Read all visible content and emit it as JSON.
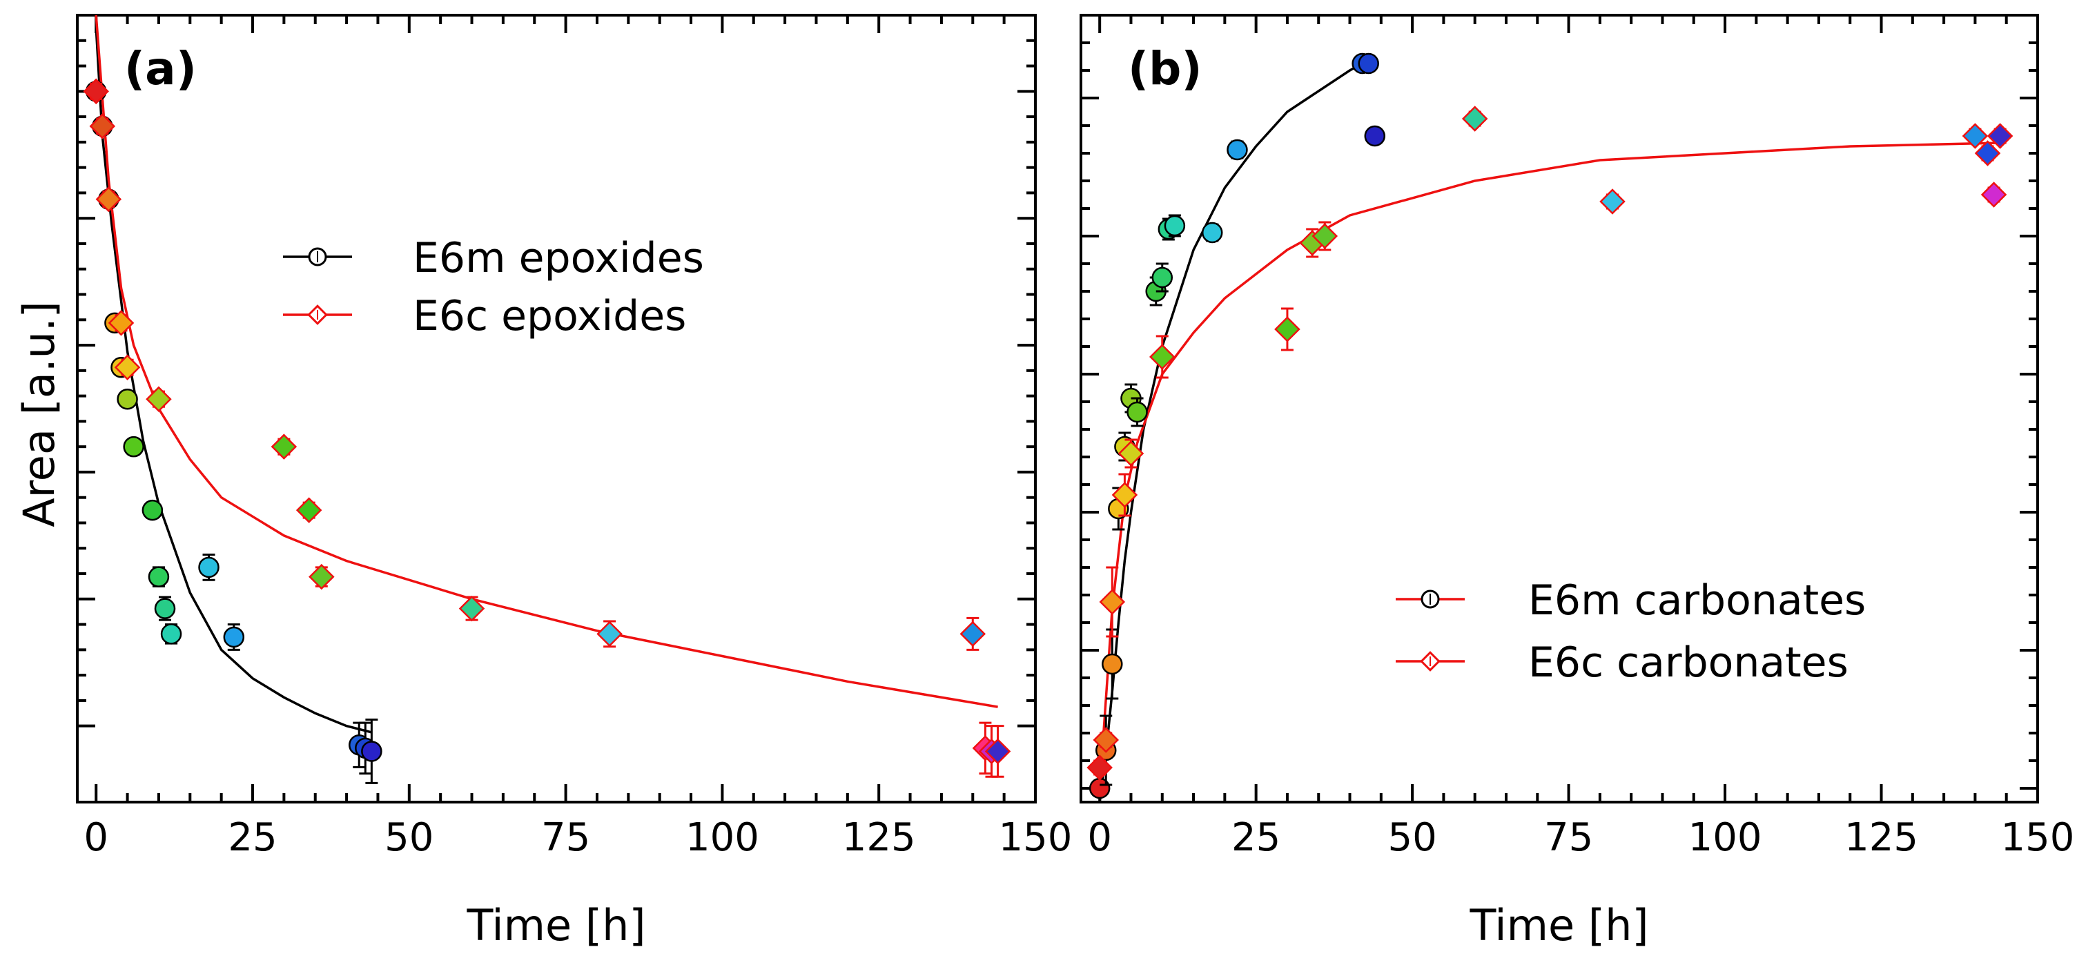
{
  "colors": {
    "epoxide_fit": "#000000",
    "carbonate_fit": "#ee1111",
    "epoxide_fit_b": "#000000",
    "carbonate_fit_b": "#ee1111",
    "error_epoxide": "#000000",
    "error_carbonate": "#ee1111",
    "marker_edge_m": "#000000",
    "marker_edge_c": "#ee1111"
  },
  "shared": {
    "ylabel": "Area [a.u.]",
    "xlabel": "Time [h]"
  },
  "chart_data": [
    {
      "type": "scatter",
      "panel_label": "(a)",
      "xlabel": "Time [h]",
      "ylabel": "Area [a.u.]",
      "xlim": [
        -3,
        150
      ],
      "ylim": [
        -0.12,
        1.12
      ],
      "x_ticks": [
        0,
        25,
        50,
        75,
        100,
        125,
        150
      ],
      "x_tick_labels": [
        "0",
        "25",
        "50",
        "75",
        "100",
        "125",
        "150"
      ],
      "y_tick_labels_shown": false,
      "legend": {
        "position": "upper-center",
        "entries": [
          "E6m epoxides",
          "E6c epoxides"
        ]
      },
      "series": [
        {
          "name": "E6m epoxides",
          "marker": "circle",
          "color_key": "epoxide_fit",
          "points": [
            {
              "x": 0,
              "y": 1.0,
              "err": 0.012,
              "color": "#e21e1e"
            },
            {
              "x": 1,
              "y": 0.945,
              "err": 0.012,
              "color": "#e0501a"
            },
            {
              "x": 2,
              "y": 0.83,
              "err": 0.012,
              "color": "#ec7a1a"
            },
            {
              "x": 3,
              "y": 0.635,
              "err": 0.012,
              "color": "#f3a010"
            },
            {
              "x": 4,
              "y": 0.565,
              "err": 0.012,
              "color": "#eec21a"
            },
            {
              "x": 5,
              "y": 0.515,
              "err": 0.012,
              "color": "#9fcc1e"
            },
            {
              "x": 6,
              "y": 0.44,
              "err": 0.012,
              "color": "#56c81c"
            },
            {
              "x": 9,
              "y": 0.34,
              "err": 0.012,
              "color": "#2ec438"
            },
            {
              "x": 10,
              "y": 0.235,
              "err": 0.015,
              "color": "#2ccc5a"
            },
            {
              "x": 11,
              "y": 0.185,
              "err": 0.018,
              "color": "#27cc88"
            },
            {
              "x": 12,
              "y": 0.145,
              "err": 0.015,
              "color": "#25d0b0"
            },
            {
              "x": 18,
              "y": 0.25,
              "err": 0.02,
              "color": "#29bee0"
            },
            {
              "x": 22,
              "y": 0.14,
              "err": 0.02,
              "color": "#1f9ee8"
            },
            {
              "x": 42,
              "y": -0.03,
              "err": 0.035,
              "color": "#1f5ed8"
            },
            {
              "x": 43,
              "y": -0.035,
              "err": 0.04,
              "color": "#1a44d0"
            },
            {
              "x": 44,
              "y": -0.04,
              "err": 0.05,
              "color": "#2822c8"
            }
          ],
          "fit": {
            "x0": 0,
            "x1": 44,
            "points": [
              [
                0,
                1.1
              ],
              [
                1,
                0.93
              ],
              [
                2.5,
                0.79
              ],
              [
                5,
                0.59
              ],
              [
                7.5,
                0.45
              ],
              [
                10,
                0.35
              ],
              [
                15,
                0.21
              ],
              [
                20,
                0.12
              ],
              [
                25,
                0.075
              ],
              [
                30,
                0.045
              ],
              [
                35,
                0.02
              ],
              [
                40,
                0.0
              ],
              [
                44,
                -0.01
              ]
            ]
          }
        },
        {
          "name": "E6c epoxides",
          "marker": "diamond",
          "color_key": "carbonate_fit",
          "points": [
            {
              "x": 0,
              "y": 1.0,
              "err": 0.012,
              "color": "#e21e1e"
            },
            {
              "x": 1,
              "y": 0.945,
              "err": 0.012,
              "color": "#e0501a"
            },
            {
              "x": 2,
              "y": 0.83,
              "err": 0.012,
              "color": "#ec7a1a"
            },
            {
              "x": 4,
              "y": 0.635,
              "err": 0.012,
              "color": "#f3a010"
            },
            {
              "x": 5,
              "y": 0.565,
              "err": 0.012,
              "color": "#eec21a"
            },
            {
              "x": 10,
              "y": 0.515,
              "err": 0.012,
              "color": "#9fcc1e"
            },
            {
              "x": 30,
              "y": 0.44,
              "err": 0.012,
              "color": "#52c41c"
            },
            {
              "x": 34,
              "y": 0.34,
              "err": 0.012,
              "color": "#3ec41c"
            },
            {
              "x": 36,
              "y": 0.235,
              "err": 0.015,
              "color": "#62c428"
            },
            {
              "x": 60,
              "y": 0.185,
              "err": 0.018,
              "color": "#32cc8c"
            },
            {
              "x": 82,
              "y": 0.145,
              "err": 0.02,
              "color": "#38c0e0"
            },
            {
              "x": 140,
              "y": 0.145,
              "err": 0.025,
              "color": "#1c8ee0"
            },
            {
              "x": 142,
              "y": -0.035,
              "err": 0.04,
              "color": "#ff2c7c"
            },
            {
              "x": 143,
              "y": -0.04,
              "err": 0.04,
              "color": "#c828c0"
            },
            {
              "x": 144,
              "y": -0.04,
              "err": 0.04,
              "color": "#3a2ac8"
            }
          ],
          "fit": {
            "x0": 0,
            "x1": 144,
            "points": [
              [
                0,
                1.17
              ],
              [
                2,
                0.86
              ],
              [
                4,
                0.69
              ],
              [
                6,
                0.6
              ],
              [
                10,
                0.5
              ],
              [
                15,
                0.42
              ],
              [
                20,
                0.36
              ],
              [
                30,
                0.3
              ],
              [
                40,
                0.26
              ],
              [
                60,
                0.2
              ],
              [
                80,
                0.15
              ],
              [
                100,
                0.11
              ],
              [
                120,
                0.07
              ],
              [
                144,
                0.03
              ]
            ]
          }
        }
      ]
    },
    {
      "type": "scatter",
      "panel_label": "(b)",
      "xlabel": "Time [h]",
      "ylabel": "",
      "xlim": [
        -3,
        150
      ],
      "ylim": [
        -0.02,
        1.12
      ],
      "x_ticks": [
        0,
        25,
        50,
        75,
        100,
        125,
        150
      ],
      "x_tick_labels": [
        "0",
        "25",
        "50",
        "75",
        "100",
        "125",
        "150"
      ],
      "y_tick_labels_shown": false,
      "legend": {
        "position": "lower-right",
        "entries": [
          "E6m carbonates",
          "E6c carbonates"
        ]
      },
      "series": [
        {
          "name": "E6m carbonates",
          "marker": "circle",
          "color_key": "epoxide_fit_b",
          "points": [
            {
              "x": 0,
              "y": 0.0,
              "err": 0.01,
              "color": "#e21e1e"
            },
            {
              "x": 1,
              "y": 0.055,
              "err": 0.05,
              "color": "#ec6a1a"
            },
            {
              "x": 2,
              "y": 0.18,
              "err": 0.05,
              "color": "#ef8a1a"
            },
            {
              "x": 3,
              "y": 0.405,
              "err": 0.03,
              "color": "#f2c01a"
            },
            {
              "x": 4,
              "y": 0.495,
              "err": 0.02,
              "color": "#d8d01a"
            },
            {
              "x": 5,
              "y": 0.565,
              "err": 0.02,
              "color": "#90cc1e"
            },
            {
              "x": 6,
              "y": 0.545,
              "err": 0.02,
              "color": "#64c81e"
            },
            {
              "x": 9,
              "y": 0.72,
              "err": 0.02,
              "color": "#38c43e"
            },
            {
              "x": 10,
              "y": 0.74,
              "err": 0.02,
              "color": "#2ccc66"
            },
            {
              "x": 11,
              "y": 0.81,
              "err": 0.015,
              "color": "#26d08c"
            },
            {
              "x": 12,
              "y": 0.815,
              "err": 0.015,
              "color": "#26d0b4"
            },
            {
              "x": 18,
              "y": 0.805,
              "err": 0.012,
              "color": "#2cc4dc"
            },
            {
              "x": 22,
              "y": 0.925,
              "err": 0.012,
              "color": "#1f9ee8"
            },
            {
              "x": 42,
              "y": 1.05,
              "err": 0.01,
              "color": "#1e5ad8"
            },
            {
              "x": 43,
              "y": 1.05,
              "err": 0.01,
              "color": "#1a40d0"
            },
            {
              "x": 44,
              "y": 0.945,
              "err": 0.01,
              "color": "#2422c0"
            }
          ],
          "fit": {
            "x0": 0,
            "x1": 44,
            "points": [
              [
                0,
                -0.02
              ],
              [
                1,
                0.05
              ],
              [
                2,
                0.14
              ],
              [
                3,
                0.24
              ],
              [
                4,
                0.33
              ],
              [
                5,
                0.4
              ],
              [
                7,
                0.52
              ],
              [
                10,
                0.64
              ],
              [
                15,
                0.78
              ],
              [
                20,
                0.87
              ],
              [
                25,
                0.93
              ],
              [
                30,
                0.98
              ],
              [
                35,
                1.01
              ],
              [
                40,
                1.04
              ],
              [
                44,
                1.06
              ]
            ]
          }
        },
        {
          "name": "E6c carbonates",
          "marker": "diamond",
          "color_key": "carbonate_fit_b",
          "points": [
            {
              "x": 0,
              "y": 0.03,
              "err": 0.01,
              "color": "#e21e1e"
            },
            {
              "x": 1,
              "y": 0.07,
              "err": 0.01,
              "color": "#ec6a1a"
            },
            {
              "x": 2,
              "y": 0.27,
              "err": 0.05,
              "color": "#f29418"
            },
            {
              "x": 4,
              "y": 0.425,
              "err": 0.03,
              "color": "#f2c01a"
            },
            {
              "x": 5,
              "y": 0.485,
              "err": 0.02,
              "color": "#d0d01c"
            },
            {
              "x": 10,
              "y": 0.625,
              "err": 0.03,
              "color": "#5cc81c"
            },
            {
              "x": 30,
              "y": 0.665,
              "err": 0.03,
              "color": "#4ec41c"
            },
            {
              "x": 34,
              "y": 0.79,
              "err": 0.02,
              "color": "#7cc424"
            },
            {
              "x": 36,
              "y": 0.8,
              "err": 0.02,
              "color": "#5ec42a"
            },
            {
              "x": 60,
              "y": 0.97,
              "err": 0.01,
              "color": "#2ccc9c"
            },
            {
              "x": 82,
              "y": 0.85,
              "err": 0.01,
              "color": "#34c0e4"
            },
            {
              "x": 140,
              "y": 0.945,
              "err": 0.01,
              "color": "#1f90e4"
            },
            {
              "x": 142,
              "y": 0.92,
              "err": 0.01,
              "color": "#1e4ce0"
            },
            {
              "x": 143,
              "y": 0.86,
              "err": 0.01,
              "color": "#d02ad0"
            },
            {
              "x": 144,
              "y": 0.945,
              "err": 0.01,
              "color": "#3a2ac8"
            }
          ],
          "fit": {
            "x0": 0,
            "x1": 144,
            "points": [
              [
                0,
                0.0
              ],
              [
                2,
                0.26
              ],
              [
                4,
                0.42
              ],
              [
                6,
                0.5
              ],
              [
                10,
                0.6
              ],
              [
                15,
                0.66
              ],
              [
                20,
                0.71
              ],
              [
                30,
                0.78
              ],
              [
                40,
                0.83
              ],
              [
                60,
                0.88
              ],
              [
                80,
                0.91
              ],
              [
                100,
                0.92
              ],
              [
                120,
                0.93
              ],
              [
                144,
                0.935
              ]
            ]
          }
        }
      ]
    }
  ]
}
